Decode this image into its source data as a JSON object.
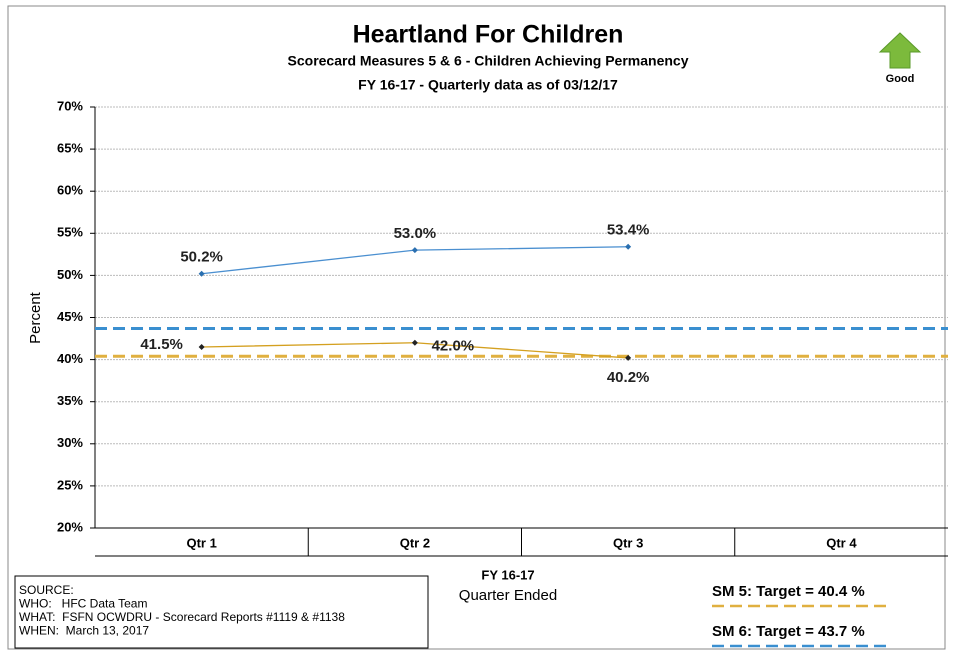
{
  "chart_data": {
    "type": "line",
    "title": "Heartland For Children",
    "subtitle": "Scorecard Measures 5 & 6 - Children Achieving Permanency",
    "subtitle2": "FY 16-17 - Quarterly  data as of 03/12/17",
    "indicator": "Good",
    "ylabel": "Percent",
    "xlabel": "FY 16-17",
    "xlabel2": "Quarter Ended",
    "categories": [
      "Qtr 1",
      "Qtr 2",
      "Qtr 3",
      "Qtr 4"
    ],
    "series": [
      {
        "color": "#4a8fd0",
        "values": [
          50.2,
          53.0,
          53.4,
          null
        ],
        "value_labels": [
          "50.2%",
          "53.0%",
          "53.4%",
          null
        ]
      },
      {
        "color": "#d4a020",
        "values": [
          41.5,
          42.0,
          40.2,
          null
        ],
        "value_labels": [
          "41.5%",
          "42.0%",
          "40.2%",
          null
        ]
      }
    ],
    "targets": [
      {
        "label": "SM 5: Target = 40.4 %",
        "value": 40.4,
        "color": "#e0b040"
      },
      {
        "label": "SM 6: Target = 43.7 %",
        "value": 43.7,
        "color": "#3a8fd0"
      }
    ],
    "ylim": [
      20,
      70
    ],
    "yticks": [
      {
        "value": 20,
        "label": "20%"
      },
      {
        "value": 25,
        "label": "25%"
      },
      {
        "value": 30,
        "label": "30%"
      },
      {
        "value": 35,
        "label": "35%"
      },
      {
        "value": 40,
        "label": "40%"
      },
      {
        "value": 45,
        "label": "45%"
      },
      {
        "value": 50,
        "label": "50%"
      },
      {
        "value": 55,
        "label": "55%"
      },
      {
        "value": 60,
        "label": "60%"
      },
      {
        "value": 65,
        "label": "65%"
      },
      {
        "value": 70,
        "label": "70%"
      }
    ],
    "grid": true,
    "source": [
      "SOURCE:",
      "WHO:   HFC Data Team",
      "WHAT:  FSFN OCWDRU - Scorecard Reports #1119 & #1138",
      "WHEN:  March 13, 2017"
    ]
  }
}
